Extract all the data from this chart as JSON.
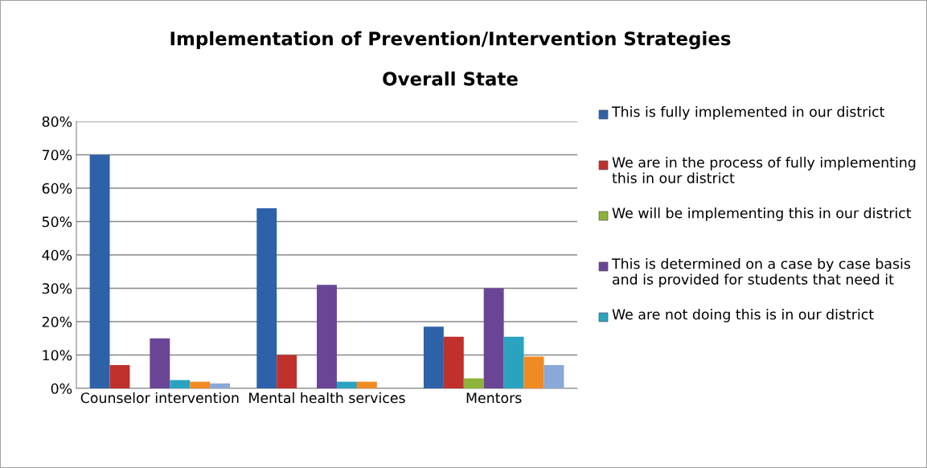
{
  "chart_data": {
    "type": "bar",
    "title": "Implementation of Prevention/Intervention Strategies",
    "subtitle": "Overall State",
    "categories": [
      "Counselor intervention",
      "Mental health services",
      "Mentors"
    ],
    "series": [
      {
        "name": "This is fully implemented in our district",
        "color": "#2e62a8",
        "values": [
          70,
          54,
          18.5
        ]
      },
      {
        "name": "We are in the process of fully implementing this in our district",
        "color": "#c0302c",
        "values": [
          7,
          10,
          15.5
        ]
      },
      {
        "name": "We will be implementing this in our district",
        "color": "#8cb43a",
        "values": [
          0,
          0,
          3
        ]
      },
      {
        "name": "This is determined on a case by case basis and is provided for students that need it",
        "color": "#6a4596",
        "values": [
          15,
          31,
          30
        ]
      },
      {
        "name": "We are not doing this is in our district",
        "color": "#2aa3c0",
        "values": [
          2.5,
          2,
          15.5
        ]
      },
      {
        "color": "#f08a22",
        "values": [
          2,
          2,
          9.5
        ]
      },
      {
        "color": "#8aa8d8",
        "values": [
          1.5,
          0,
          7
        ]
      }
    ],
    "ylim": [
      0,
      80
    ],
    "yticks": [
      {
        "value": 0,
        "label": "0%"
      },
      {
        "value": 10,
        "label": "10%"
      },
      {
        "value": 20,
        "label": "20%"
      },
      {
        "value": 30,
        "label": "30%"
      },
      {
        "value": 40,
        "label": "40%"
      },
      {
        "value": 50,
        "label": "50%"
      },
      {
        "value": 60,
        "label": "60%"
      },
      {
        "value": 70,
        "label": "70%"
      },
      {
        "value": 80,
        "label": "80%"
      }
    ],
    "grid": "y",
    "legend": "right"
  }
}
